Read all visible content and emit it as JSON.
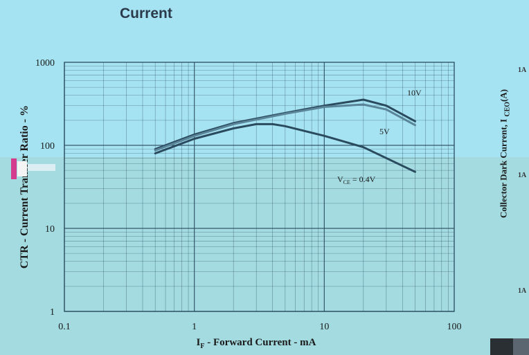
{
  "page": {
    "section_title": "Current"
  },
  "chart_data": {
    "type": "line",
    "title": "",
    "xlabel_main": "I",
    "xlabel_sub": "F",
    "xlabel_rest": " - Forward Current - mA",
    "ylabel": "CTR - Current Transfer Ratio - %",
    "x_scale": "log",
    "y_scale": "log",
    "xlim": [
      0.1,
      100
    ],
    "ylim": [
      1,
      1000
    ],
    "x_ticks": [
      "0.1",
      "1",
      "10",
      "100"
    ],
    "y_ticks": [
      "1",
      "10",
      "100",
      "1000"
    ],
    "grid": true,
    "series": [
      {
        "name": "10V",
        "x": [
          0.5,
          1,
          2,
          5,
          10,
          20,
          30,
          50
        ],
        "y": [
          90,
          135,
          185,
          245,
          300,
          355,
          300,
          195
        ]
      },
      {
        "name": "5V",
        "x": [
          0.5,
          1,
          2,
          5,
          10,
          20,
          30,
          50
        ],
        "y": [
          87,
          130,
          180,
          240,
          290,
          310,
          270,
          175
        ]
      },
      {
        "name": "V_CE = 0.4V",
        "label_main": "V",
        "label_sub": "CE",
        "label_rest": " = 0.4V",
        "x": [
          0.5,
          1,
          2,
          3,
          4,
          5,
          10,
          20,
          50
        ],
        "y": [
          80,
          120,
          160,
          180,
          180,
          170,
          130,
          95,
          48
        ]
      }
    ],
    "line_color": "#2a4a5e"
  },
  "right_panel": {
    "ylabel_main": "Collector Dark Current, I",
    "ylabel_sub": "CEO",
    "ylabel_rest": "(A)",
    "tick_labels": [
      "1A",
      "1A",
      "1A"
    ]
  }
}
